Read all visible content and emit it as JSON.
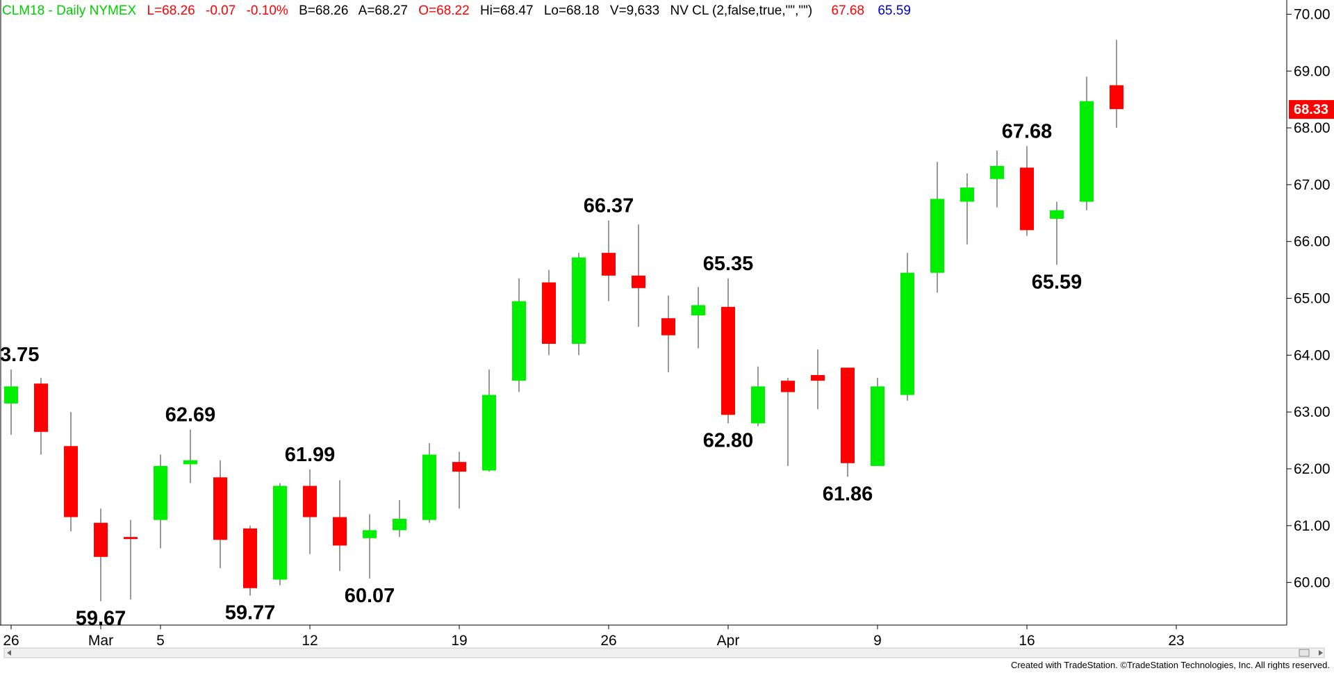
{
  "header": {
    "symbol": "CLM18 - Daily  NYMEX",
    "last": "L=68.26",
    "change": "-0.07",
    "pct": "-0.10%",
    "bid": "B=68.26",
    "ask": "A=68.27",
    "open": "O=68.22",
    "high": "Hi=68.47",
    "low": "Lo=68.18",
    "volume": "V=9,633",
    "indicator": "NV CL (2,false,true,\"\",\"\")",
    "ind_val1": "67.68",
    "ind_val2": "65.59"
  },
  "credit": "Created with TradeStation. ©TradeStation Technologies, Inc. All rights reserved.",
  "last_price_label": "68.33",
  "colors": {
    "up": "#00ee00",
    "down": "#ff0000",
    "wick": "#555555",
    "header_green": "#00cc00",
    "header_red": "#ff0000",
    "header_blue": "#0000cc",
    "price_tag": "#ff0000"
  },
  "chart_data": {
    "type": "candlestick",
    "y_range": [
      59.25,
      70.25
    ],
    "y_ticks": [
      60,
      61,
      62,
      63,
      64,
      65,
      66,
      67,
      68,
      69,
      70
    ],
    "y_tick_labels": [
      "60.00",
      "61.00",
      "62.00",
      "63.00",
      "64.00",
      "65.00",
      "66.00",
      "67.00",
      "68.00",
      "69.00",
      "70.00"
    ],
    "x_labels": [
      {
        "label": "26",
        "day": 0
      },
      {
        "label": "Mar",
        "day": 3
      },
      {
        "label": "5",
        "day": 5
      },
      {
        "label": "12",
        "day": 10
      },
      {
        "label": "19",
        "day": 15
      },
      {
        "label": "26",
        "day": 20
      },
      {
        "label": "Apr",
        "day": 24
      },
      {
        "label": "9",
        "day": 29
      },
      {
        "label": "16",
        "day": 34
      },
      {
        "label": "23",
        "day": 39
      }
    ],
    "candles": [
      {
        "day": 0,
        "open": 63.15,
        "high": 63.75,
        "low": 62.6,
        "close": 63.45
      },
      {
        "day": 1,
        "open": 63.5,
        "high": 63.6,
        "low": 62.25,
        "close": 62.65
      },
      {
        "day": 2,
        "open": 62.4,
        "high": 63.0,
        "low": 60.9,
        "close": 61.15
      },
      {
        "day": 3,
        "open": 61.05,
        "high": 61.3,
        "low": 59.67,
        "close": 60.45
      },
      {
        "day": 4,
        "open": 60.8,
        "high": 61.1,
        "low": 59.7,
        "close": 60.78
      },
      {
        "day": 5,
        "open": 61.1,
        "high": 62.25,
        "low": 60.6,
        "close": 62.05
      },
      {
        "day": 6,
        "open": 62.08,
        "high": 62.69,
        "low": 61.75,
        "close": 62.15
      },
      {
        "day": 7,
        "open": 61.85,
        "high": 62.15,
        "low": 60.25,
        "close": 60.75
      },
      {
        "day": 8,
        "open": 60.95,
        "high": 61.0,
        "low": 59.77,
        "close": 59.9
      },
      {
        "day": 9,
        "open": 60.05,
        "high": 61.75,
        "low": 59.95,
        "close": 61.7
      },
      {
        "day": 10,
        "open": 61.7,
        "high": 61.99,
        "low": 60.5,
        "close": 61.15
      },
      {
        "day": 11,
        "open": 61.15,
        "high": 61.8,
        "low": 60.2,
        "close": 60.65
      },
      {
        "day": 12,
        "open": 60.78,
        "high": 61.2,
        "low": 60.07,
        "close": 60.92
      },
      {
        "day": 13,
        "open": 60.92,
        "high": 61.45,
        "low": 60.8,
        "close": 61.12
      },
      {
        "day": 14,
        "open": 61.1,
        "high": 62.45,
        "low": 61.05,
        "close": 62.25
      },
      {
        "day": 15,
        "open": 62.12,
        "high": 62.3,
        "low": 61.3,
        "close": 61.95
      },
      {
        "day": 16,
        "open": 61.97,
        "high": 63.75,
        "low": 61.95,
        "close": 63.3
      },
      {
        "day": 17,
        "open": 63.55,
        "high": 65.35,
        "low": 63.35,
        "close": 64.95
      },
      {
        "day": 18,
        "open": 65.28,
        "high": 65.5,
        "low": 64.0,
        "close": 64.2
      },
      {
        "day": 19,
        "open": 64.2,
        "high": 65.8,
        "low": 64.0,
        "close": 65.72
      },
      {
        "day": 20,
        "open": 65.8,
        "high": 66.37,
        "low": 64.95,
        "close": 65.4
      },
      {
        "day": 21,
        "open": 65.4,
        "high": 66.3,
        "low": 64.5,
        "close": 65.18
      },
      {
        "day": 22,
        "open": 64.65,
        "high": 65.05,
        "low": 63.7,
        "close": 64.35
      },
      {
        "day": 23,
        "open": 64.7,
        "high": 65.2,
        "low": 64.12,
        "close": 64.88
      },
      {
        "day": 24,
        "open": 64.85,
        "high": 65.35,
        "low": 62.8,
        "close": 62.95
      },
      {
        "day": 25,
        "open": 62.8,
        "high": 63.8,
        "low": 62.75,
        "close": 63.45
      },
      {
        "day": 26,
        "open": 63.55,
        "high": 63.6,
        "low": 62.05,
        "close": 63.35
      },
      {
        "day": 27,
        "open": 63.65,
        "high": 64.1,
        "low": 63.05,
        "close": 63.55
      },
      {
        "day": 28,
        "open": 63.78,
        "high": 63.78,
        "low": 61.86,
        "close": 62.1
      },
      {
        "day": 29,
        "open": 62.05,
        "high": 63.6,
        "low": 62.05,
        "close": 63.45
      },
      {
        "day": 30,
        "open": 63.3,
        "high": 65.8,
        "low": 63.2,
        "close": 65.45
      },
      {
        "day": 31,
        "open": 65.45,
        "high": 67.4,
        "low": 65.1,
        "close": 66.75
      },
      {
        "day": 32,
        "open": 66.7,
        "high": 67.2,
        "low": 65.95,
        "close": 66.95
      },
      {
        "day": 33,
        "open": 67.1,
        "high": 67.6,
        "low": 66.6,
        "close": 67.33
      },
      {
        "day": 34,
        "open": 67.3,
        "high": 67.68,
        "low": 66.1,
        "close": 66.2
      },
      {
        "day": 35,
        "open": 66.4,
        "high": 66.7,
        "low": 65.59,
        "close": 66.55
      },
      {
        "day": 36,
        "open": 66.7,
        "high": 68.9,
        "low": 66.55,
        "close": 68.47
      },
      {
        "day": 37,
        "open": 68.75,
        "high": 69.55,
        "low": 68.0,
        "close": 68.33
      }
    ],
    "annotations": [
      {
        "text": "3.75",
        "day": 0,
        "price": 63.75,
        "pos": "above"
      },
      {
        "text": "59.67",
        "day": 3,
        "price": 59.67,
        "pos": "below"
      },
      {
        "text": "62.69",
        "day": 6,
        "price": 62.69,
        "pos": "above"
      },
      {
        "text": "59.77",
        "day": 8,
        "price": 59.77,
        "pos": "below"
      },
      {
        "text": "61.99",
        "day": 10,
        "price": 61.99,
        "pos": "above"
      },
      {
        "text": "60.07",
        "day": 12,
        "price": 60.07,
        "pos": "below"
      },
      {
        "text": "66.37",
        "day": 20,
        "price": 66.37,
        "pos": "above"
      },
      {
        "text": "65.35",
        "day": 24,
        "price": 65.35,
        "pos": "above"
      },
      {
        "text": "62.80",
        "day": 24,
        "price": 62.8,
        "pos": "below"
      },
      {
        "text": "61.86",
        "day": 28,
        "price": 61.86,
        "pos": "below"
      },
      {
        "text": "67.68",
        "day": 34,
        "price": 67.68,
        "pos": "above"
      },
      {
        "text": "65.59",
        "day": 35,
        "price": 65.59,
        "pos": "below"
      }
    ]
  }
}
